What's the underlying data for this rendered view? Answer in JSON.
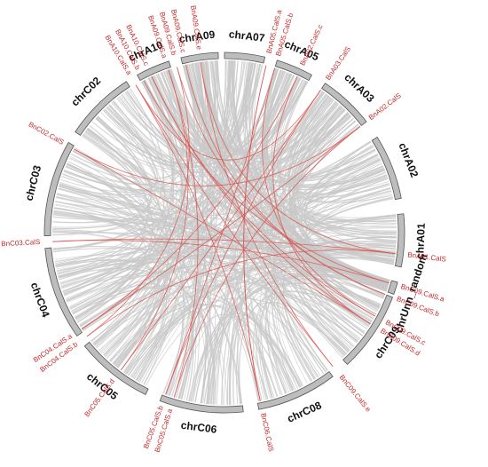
{
  "colors": {
    "background": "#ffffff",
    "chromosome_fill": "#bdbdbd",
    "chromosome_stroke": "#555555",
    "synteny_link": "#c8c8c8",
    "gene_link": "#d9534f",
    "gene_label": "#c62828",
    "chromosome_label": "#111111"
  },
  "chromosomes": [
    {
      "id": "chrA01",
      "label": "chrA01",
      "start_deg": 84,
      "end_deg": 101
    },
    {
      "id": "chrUnn_random",
      "label": "chrUnn_random",
      "start_deg": 106,
      "end_deg": 110
    },
    {
      "id": "chrC09",
      "label": "chrC09",
      "start_deg": 111,
      "end_deg": 137
    },
    {
      "id": "chrC08",
      "label": "chrC08",
      "start_deg": 143,
      "end_deg": 169
    },
    {
      "id": "chrC06",
      "label": "chrC06",
      "start_deg": 174,
      "end_deg": 201
    },
    {
      "id": "chrC05",
      "label": "chrC05",
      "start_deg": 206,
      "end_deg": 231
    },
    {
      "id": "chrC04",
      "label": "chrC04",
      "start_deg": 235,
      "end_deg": 265
    },
    {
      "id": "chrC03",
      "label": "chrC03",
      "start_deg": 269,
      "end_deg": 300
    },
    {
      "id": "chrC02",
      "label": "chrC02",
      "start_deg": 304,
      "end_deg": 327
    },
    {
      "id": "chrA10",
      "label": "chrA10",
      "start_deg": 331,
      "end_deg": 342
    },
    {
      "id": "chrA09",
      "label": "chrA09",
      "start_deg": 346,
      "end_deg": 358
    },
    {
      "id": "chrA07",
      "label": "chrA07",
      "start_deg": 0,
      "end_deg": 13
    },
    {
      "id": "chrA05",
      "label": "chrA05",
      "start_deg": 17,
      "end_deg": 29
    },
    {
      "id": "chrA03",
      "label": "chrA03",
      "start_deg": 34,
      "end_deg": 52
    },
    {
      "id": "chrA02",
      "label": "chrA02",
      "start_deg": 58,
      "end_deg": 79
    }
  ],
  "genes": [
    {
      "label": "BnA01.CalS",
      "angle_deg": 97
    },
    {
      "label": "BnA02.CalS",
      "angle_deg": 52
    },
    {
      "label": "BnA03.CalS",
      "angle_deg": 34
    },
    {
      "label": "BnA02.CalS.c",
      "angle_deg": 25
    },
    {
      "label": "BnA05.CalS.b",
      "angle_deg": 17
    },
    {
      "label": "BnA05.CalS.a",
      "angle_deg": 14
    },
    {
      "label": "BnA09.CalS.e",
      "angle_deg": 352
    },
    {
      "label": "BnA09.CalS.c",
      "angle_deg": 347
    },
    {
      "label": "BnA09.CalS.b",
      "angle_deg": 344
    },
    {
      "label": "BnA09.CalS.a",
      "angle_deg": 341
    },
    {
      "label": "BnA10.CalS.c",
      "angle_deg": 335
    },
    {
      "label": "BnA10.CalS.b",
      "angle_deg": 332
    },
    {
      "label": "BnA10.CalS.a",
      "angle_deg": 329
    },
    {
      "label": "BnC02.CalS",
      "angle_deg": 299
    },
    {
      "label": "BnC03.CalS",
      "angle_deg": 267
    },
    {
      "label": "BnC04.CalS.a",
      "angle_deg": 236
    },
    {
      "label": "BnC04.CalS.b",
      "angle_deg": 233
    },
    {
      "label": "BnC05.CalS.d",
      "angle_deg": 217
    },
    {
      "label": "BnC05.CalS.b",
      "angle_deg": 200
    },
    {
      "label": "BnC05.CalS.a",
      "angle_deg": 197
    },
    {
      "label": "BnC06.CalS",
      "angle_deg": 168
    },
    {
      "label": "BnC09.CalS.e",
      "angle_deg": 141
    },
    {
      "label": "BnC09.CalS.d",
      "angle_deg": 122
    },
    {
      "label": "BnC09.CalS.c",
      "angle_deg": 119
    },
    {
      "label": "BnC09.CalS.b",
      "angle_deg": 111
    },
    {
      "label": "BnC09.CalS.a",
      "angle_deg": 107
    }
  ],
  "gene_links": [
    [
      97,
      267
    ],
    [
      97,
      352
    ],
    [
      52,
      299
    ],
    [
      52,
      236
    ],
    [
      34,
      217
    ],
    [
      34,
      329
    ],
    [
      25,
      122
    ],
    [
      17,
      200
    ],
    [
      14,
      168
    ],
    [
      352,
      141
    ],
    [
      347,
      111
    ],
    [
      344,
      233
    ],
    [
      341,
      197
    ],
    [
      335,
      119
    ],
    [
      332,
      107
    ],
    [
      329,
      168
    ],
    [
      299,
      122
    ],
    [
      267,
      107
    ],
    [
      236,
      25
    ],
    [
      217,
      341
    ],
    [
      197,
      52
    ],
    [
      168,
      14
    ],
    [
      141,
      329
    ],
    [
      122,
      335
    ],
    [
      119,
      17
    ],
    [
      111,
      344
    ],
    [
      233,
      97
    ],
    [
      200,
      34
    ]
  ]
}
